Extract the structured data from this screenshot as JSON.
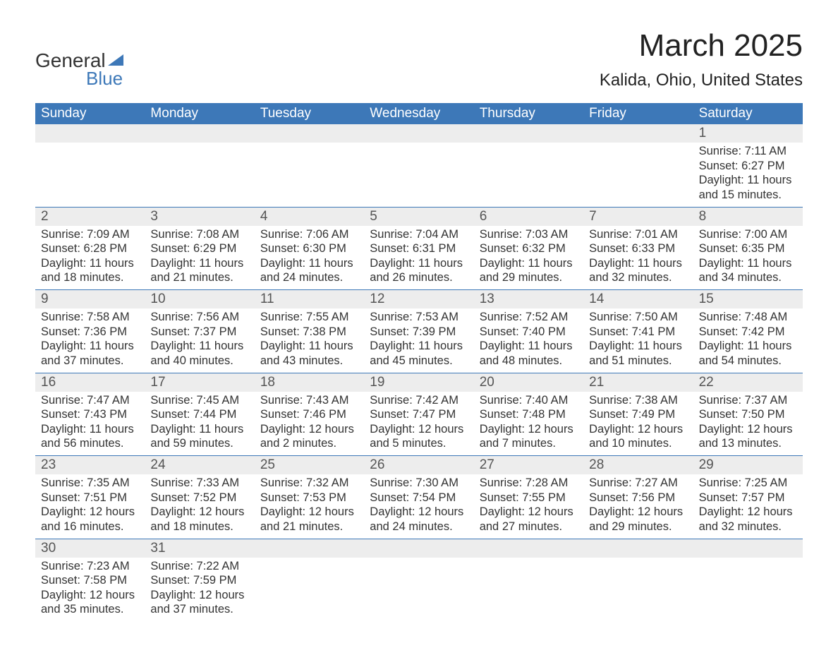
{
  "logo": {
    "text1": "General",
    "text2": "Blue",
    "shape_color": "#3d78b8"
  },
  "title": "March 2025",
  "subtitle": "Kalida, Ohio, United States",
  "colors": {
    "header_bg": "#3d78b8",
    "header_text": "#ffffff",
    "daynum_bg": "#ededed",
    "body_text": "#333333",
    "week_border": "#3d78b8"
  },
  "fontsizes": {
    "title": 44,
    "subtitle": 24,
    "weekday": 19,
    "daynum": 19,
    "body": 16.5
  },
  "weekdays": [
    "Sunday",
    "Monday",
    "Tuesday",
    "Wednesday",
    "Thursday",
    "Friday",
    "Saturday"
  ],
  "weeks": [
    [
      null,
      null,
      null,
      null,
      null,
      null,
      {
        "n": "1",
        "sunrise": "7:11 AM",
        "sunset": "6:27 PM",
        "daylight": "11 hours and 15 minutes."
      }
    ],
    [
      {
        "n": "2",
        "sunrise": "7:09 AM",
        "sunset": "6:28 PM",
        "daylight": "11 hours and 18 minutes."
      },
      {
        "n": "3",
        "sunrise": "7:08 AM",
        "sunset": "6:29 PM",
        "daylight": "11 hours and 21 minutes."
      },
      {
        "n": "4",
        "sunrise": "7:06 AM",
        "sunset": "6:30 PM",
        "daylight": "11 hours and 24 minutes."
      },
      {
        "n": "5",
        "sunrise": "7:04 AM",
        "sunset": "6:31 PM",
        "daylight": "11 hours and 26 minutes."
      },
      {
        "n": "6",
        "sunrise": "7:03 AM",
        "sunset": "6:32 PM",
        "daylight": "11 hours and 29 minutes."
      },
      {
        "n": "7",
        "sunrise": "7:01 AM",
        "sunset": "6:33 PM",
        "daylight": "11 hours and 32 minutes."
      },
      {
        "n": "8",
        "sunrise": "7:00 AM",
        "sunset": "6:35 PM",
        "daylight": "11 hours and 34 minutes."
      }
    ],
    [
      {
        "n": "9",
        "sunrise": "7:58 AM",
        "sunset": "7:36 PM",
        "daylight": "11 hours and 37 minutes."
      },
      {
        "n": "10",
        "sunrise": "7:56 AM",
        "sunset": "7:37 PM",
        "daylight": "11 hours and 40 minutes."
      },
      {
        "n": "11",
        "sunrise": "7:55 AM",
        "sunset": "7:38 PM",
        "daylight": "11 hours and 43 minutes."
      },
      {
        "n": "12",
        "sunrise": "7:53 AM",
        "sunset": "7:39 PM",
        "daylight": "11 hours and 45 minutes."
      },
      {
        "n": "13",
        "sunrise": "7:52 AM",
        "sunset": "7:40 PM",
        "daylight": "11 hours and 48 minutes."
      },
      {
        "n": "14",
        "sunrise": "7:50 AM",
        "sunset": "7:41 PM",
        "daylight": "11 hours and 51 minutes."
      },
      {
        "n": "15",
        "sunrise": "7:48 AM",
        "sunset": "7:42 PM",
        "daylight": "11 hours and 54 minutes."
      }
    ],
    [
      {
        "n": "16",
        "sunrise": "7:47 AM",
        "sunset": "7:43 PM",
        "daylight": "11 hours and 56 minutes."
      },
      {
        "n": "17",
        "sunrise": "7:45 AM",
        "sunset": "7:44 PM",
        "daylight": "11 hours and 59 minutes."
      },
      {
        "n": "18",
        "sunrise": "7:43 AM",
        "sunset": "7:46 PM",
        "daylight": "12 hours and 2 minutes."
      },
      {
        "n": "19",
        "sunrise": "7:42 AM",
        "sunset": "7:47 PM",
        "daylight": "12 hours and 5 minutes."
      },
      {
        "n": "20",
        "sunrise": "7:40 AM",
        "sunset": "7:48 PM",
        "daylight": "12 hours and 7 minutes."
      },
      {
        "n": "21",
        "sunrise": "7:38 AM",
        "sunset": "7:49 PM",
        "daylight": "12 hours and 10 minutes."
      },
      {
        "n": "22",
        "sunrise": "7:37 AM",
        "sunset": "7:50 PM",
        "daylight": "12 hours and 13 minutes."
      }
    ],
    [
      {
        "n": "23",
        "sunrise": "7:35 AM",
        "sunset": "7:51 PM",
        "daylight": "12 hours and 16 minutes."
      },
      {
        "n": "24",
        "sunrise": "7:33 AM",
        "sunset": "7:52 PM",
        "daylight": "12 hours and 18 minutes."
      },
      {
        "n": "25",
        "sunrise": "7:32 AM",
        "sunset": "7:53 PM",
        "daylight": "12 hours and 21 minutes."
      },
      {
        "n": "26",
        "sunrise": "7:30 AM",
        "sunset": "7:54 PM",
        "daylight": "12 hours and 24 minutes."
      },
      {
        "n": "27",
        "sunrise": "7:28 AM",
        "sunset": "7:55 PM",
        "daylight": "12 hours and 27 minutes."
      },
      {
        "n": "28",
        "sunrise": "7:27 AM",
        "sunset": "7:56 PM",
        "daylight": "12 hours and 29 minutes."
      },
      {
        "n": "29",
        "sunrise": "7:25 AM",
        "sunset": "7:57 PM",
        "daylight": "12 hours and 32 minutes."
      }
    ],
    [
      {
        "n": "30",
        "sunrise": "7:23 AM",
        "sunset": "7:58 PM",
        "daylight": "12 hours and 35 minutes."
      },
      {
        "n": "31",
        "sunrise": "7:22 AM",
        "sunset": "7:59 PM",
        "daylight": "12 hours and 37 minutes."
      },
      null,
      null,
      null,
      null,
      null
    ]
  ],
  "labels": {
    "sunrise": "Sunrise:",
    "sunset": "Sunset:",
    "daylight": "Daylight:"
  }
}
